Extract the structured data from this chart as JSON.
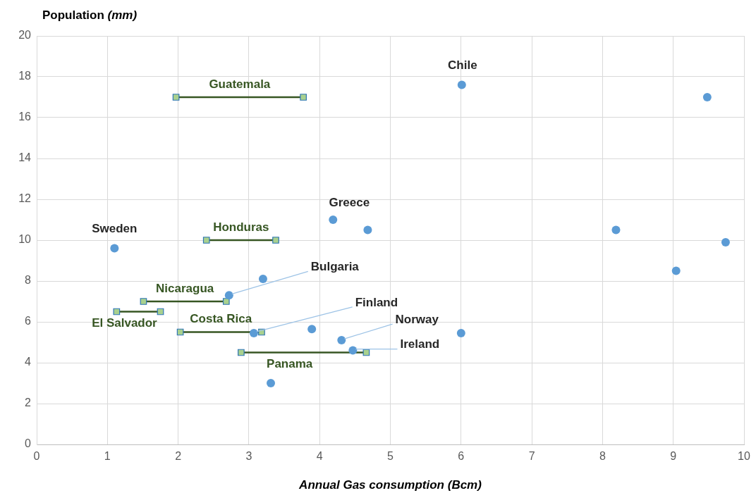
{
  "chart_data": {
    "type": "scatter",
    "ylabel": "Population (mm)",
    "xlabel": "Annual Gas consumption (Bcm)",
    "xlim": [
      0,
      10
    ],
    "xticks": [
      0,
      1,
      2,
      3,
      4,
      5,
      6,
      7,
      8,
      9,
      10
    ],
    "ylim": [
      0,
      20
    ],
    "yticks": [
      0,
      2,
      4,
      6,
      8,
      10,
      12,
      14,
      16,
      18,
      20
    ],
    "grid": true,
    "legend": false,
    "series": [
      {
        "marker": "circle",
        "color": "#5b9bd5",
        "x": [
          1.1,
          4.19,
          4.68,
          6.01,
          9.48,
          8.19,
          9.74,
          9.04,
          3.2,
          2.72,
          3.07,
          3.89,
          4.31,
          4.47,
          6.0,
          3.31
        ],
        "values": [
          9.6,
          11.0,
          10.5,
          17.6,
          17.0,
          10.5,
          9.9,
          8.5,
          8.1,
          7.3,
          5.45,
          5.65,
          5.1,
          4.6,
          5.45,
          3.0
        ]
      },
      {
        "type": "line",
        "marker": "square",
        "name": "Guatemala",
        "color": "#375623",
        "x": [
          1.97,
          3.77
        ],
        "values": [
          17,
          17
        ]
      },
      {
        "type": "line",
        "marker": "square",
        "name": "Honduras",
        "color": "#375623",
        "x": [
          2.4,
          3.38
        ],
        "values": [
          10,
          10
        ]
      },
      {
        "type": "line",
        "marker": "square",
        "name": "Nicaragua",
        "color": "#375623",
        "x": [
          1.51,
          2.68
        ],
        "values": [
          7,
          7
        ]
      },
      {
        "type": "line",
        "marker": "square",
        "name": "El Salvador",
        "color": "#375623",
        "x": [
          1.13,
          1.75
        ],
        "values": [
          6.5,
          6.5
        ]
      },
      {
        "type": "line",
        "marker": "square",
        "name": "Costa Rica",
        "color": "#375623",
        "x": [
          2.03,
          3.18
        ],
        "values": [
          5.5,
          5.5
        ]
      },
      {
        "type": "line",
        "marker": "square",
        "name": "Panama",
        "color": "#375623",
        "x": [
          2.89,
          4.66
        ],
        "values": [
          4.5,
          4.5
        ]
      }
    ],
    "annotations": [
      {
        "text": "Sweden",
        "x": 1.1,
        "y": 9.6
      },
      {
        "text": "Greece",
        "x": 4.19,
        "y": 11.0
      },
      {
        "text": "Chile",
        "x": 6.01,
        "y": 17.6
      },
      {
        "text": "Bulgaria",
        "x": 2.72,
        "y": 7.3
      },
      {
        "text": "Finland",
        "x": 3.07,
        "y": 5.45
      },
      {
        "text": "Norway",
        "x": 4.31,
        "y": 5.1
      },
      {
        "text": "Ireland",
        "x": 4.47,
        "y": 4.6
      }
    ]
  }
}
